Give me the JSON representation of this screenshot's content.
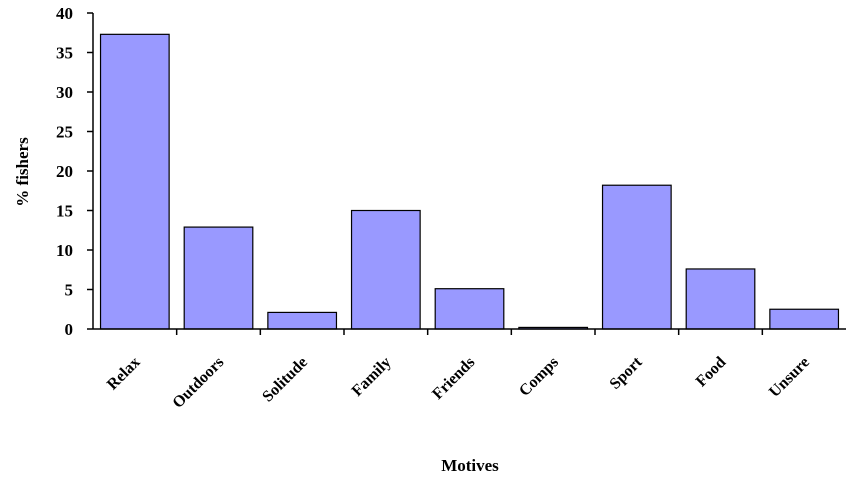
{
  "chart_data": {
    "type": "bar",
    "title": "",
    "xlabel": "Motives",
    "ylabel": "% fishers",
    "categories": [
      "Relax",
      "Outdoors",
      "Solitude",
      "Family",
      "Friends",
      "Comps",
      "Sport",
      "Food",
      "Unsure"
    ],
    "values": [
      37.3,
      12.9,
      2.1,
      15.0,
      5.1,
      0.2,
      18.2,
      7.6,
      2.5
    ],
    "ylim": [
      0,
      40
    ],
    "yticks": [
      0,
      5,
      10,
      15,
      20,
      25,
      30,
      35,
      40
    ],
    "grid": false,
    "bar_color": "#9999ff"
  }
}
